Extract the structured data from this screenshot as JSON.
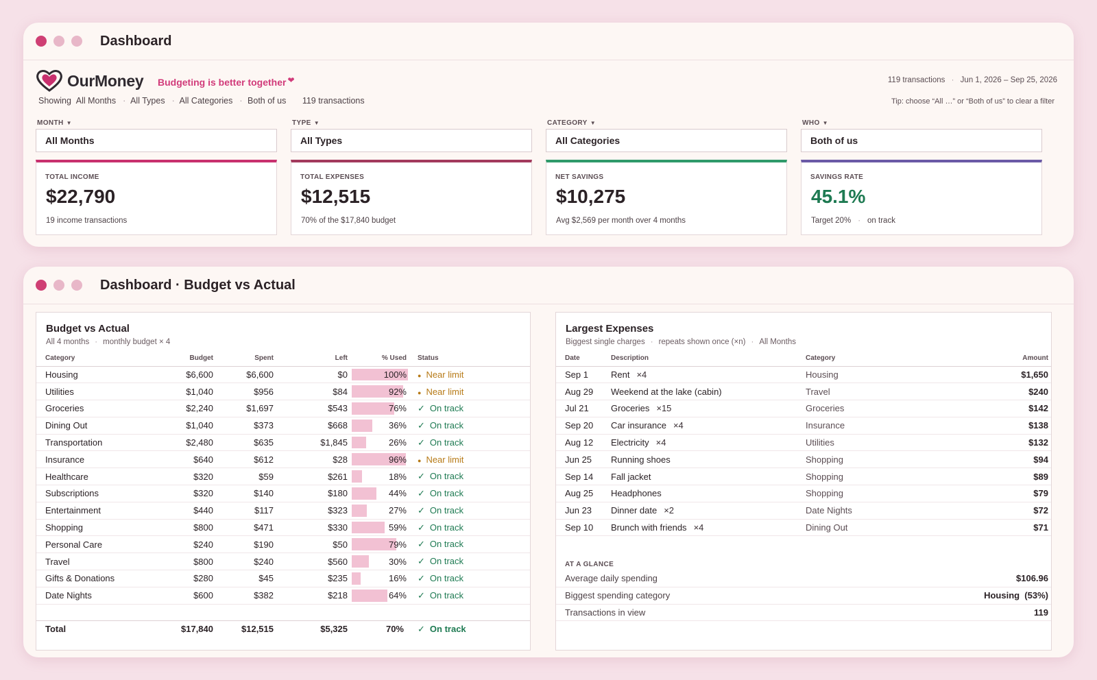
{
  "window1": {
    "title": "Dashboard",
    "brand": {
      "name": "OurMoney",
      "tagline": "Budgeting is better together"
    },
    "header_meta": {
      "transactions": "119 transactions",
      "date_range": "Jun 1, 2026 – Sep 25, 2026"
    },
    "filter_summary": {
      "prefix": "Showing",
      "month": "All Months",
      "type": "All Types",
      "category": "All Categories",
      "who": "Both of us",
      "count": "119 transactions"
    },
    "tip": "Tip: choose “All …” or “Both of us” to clear a filter",
    "filters": [
      {
        "label": "MONTH",
        "value": "All Months"
      },
      {
        "label": "TYPE",
        "value": "All Types"
      },
      {
        "label": "CATEGORY",
        "value": "All Categories"
      },
      {
        "label": "WHO",
        "value": "Both of us"
      }
    ],
    "stats": [
      {
        "label": "TOTAL INCOME",
        "value": "$22,790",
        "sub": "19 income transactions",
        "accent": "#c8306e"
      },
      {
        "label": "TOTAL EXPENSES",
        "value": "$12,515",
        "sub": "70% of the $17,840 budget",
        "accent": "#a33a5d"
      },
      {
        "label": "NET SAVINGS",
        "value": "$10,275",
        "sub": "Avg $2,569 per month over 4 months",
        "accent": "#2f9a6a"
      },
      {
        "label": "SAVINGS RATE",
        "value": "45.1%",
        "sub": "Target 20%",
        "sub2": "on track",
        "accent": "#6a5aa6"
      }
    ]
  },
  "window2": {
    "title": "Dashboard · Budget vs Actual",
    "budget": {
      "title": "Budget vs Actual",
      "sub1": "All 4 months",
      "sub2": "monthly budget × 4",
      "columns": [
        "Category",
        "Budget",
        "Spent",
        "Left",
        "% Used",
        "Status"
      ],
      "rows": [
        {
          "category": "Housing",
          "budget": "$6,600",
          "spent": "$6,600",
          "left": "$0",
          "pct": "100%",
          "pct_value": 100,
          "status": "Near limit",
          "near": true
        },
        {
          "category": "Utilities",
          "budget": "$1,040",
          "spent": "$956",
          "left": "$84",
          "pct": "92%",
          "pct_value": 92,
          "status": "Near limit",
          "near": true
        },
        {
          "category": "Groceries",
          "budget": "$2,240",
          "spent": "$1,697",
          "left": "$543",
          "pct": "76%",
          "pct_value": 76,
          "status": "On track",
          "near": false
        },
        {
          "category": "Dining Out",
          "budget": "$1,040",
          "spent": "$373",
          "left": "$668",
          "pct": "36%",
          "pct_value": 36,
          "status": "On track",
          "near": false
        },
        {
          "category": "Transportation",
          "budget": "$2,480",
          "spent": "$635",
          "left": "$1,845",
          "pct": "26%",
          "pct_value": 26,
          "status": "On track",
          "near": false
        },
        {
          "category": "Insurance",
          "budget": "$640",
          "spent": "$612",
          "left": "$28",
          "pct": "96%",
          "pct_value": 96,
          "status": "Near limit",
          "near": true
        },
        {
          "category": "Healthcare",
          "budget": "$320",
          "spent": "$59",
          "left": "$261",
          "pct": "18%",
          "pct_value": 18,
          "status": "On track",
          "near": false
        },
        {
          "category": "Subscriptions",
          "budget": "$320",
          "spent": "$140",
          "left": "$180",
          "pct": "44%",
          "pct_value": 44,
          "status": "On track",
          "near": false
        },
        {
          "category": "Entertainment",
          "budget": "$440",
          "spent": "$117",
          "left": "$323",
          "pct": "27%",
          "pct_value": 27,
          "status": "On track",
          "near": false
        },
        {
          "category": "Shopping",
          "budget": "$800",
          "spent": "$471",
          "left": "$330",
          "pct": "59%",
          "pct_value": 59,
          "status": "On track",
          "near": false
        },
        {
          "category": "Personal Care",
          "budget": "$240",
          "spent": "$190",
          "left": "$50",
          "pct": "79%",
          "pct_value": 79,
          "status": "On track",
          "near": false
        },
        {
          "category": "Travel",
          "budget": "$800",
          "spent": "$240",
          "left": "$560",
          "pct": "30%",
          "pct_value": 30,
          "status": "On track",
          "near": false
        },
        {
          "category": "Gifts & Donations",
          "budget": "$280",
          "spent": "$45",
          "left": "$235",
          "pct": "16%",
          "pct_value": 16,
          "status": "On track",
          "near": false
        },
        {
          "category": "Date Nights",
          "budget": "$600",
          "spent": "$382",
          "left": "$218",
          "pct": "64%",
          "pct_value": 64,
          "status": "On track",
          "near": false
        }
      ],
      "total": {
        "label": "Total",
        "budget": "$17,840",
        "spent": "$12,515",
        "left": "$5,325",
        "pct": "70%",
        "status": "On track"
      }
    },
    "expenses": {
      "title": "Largest Expenses",
      "sub1": "Biggest single charges",
      "sub2": "repeats shown once (×n)",
      "sub3": "All Months",
      "columns": [
        "Date",
        "Description",
        "Category",
        "Amount"
      ],
      "rows": [
        {
          "date": "Sep 1",
          "desc": "Rent",
          "mult": "×4",
          "category": "Housing",
          "amount": "$1,650"
        },
        {
          "date": "Aug 29",
          "desc": "Weekend at the lake (cabin)",
          "mult": "",
          "category": "Travel",
          "amount": "$240"
        },
        {
          "date": "Jul 21",
          "desc": "Groceries",
          "mult": "×15",
          "category": "Groceries",
          "amount": "$142"
        },
        {
          "date": "Sep 20",
          "desc": "Car insurance",
          "mult": "×4",
          "category": "Insurance",
          "amount": "$138"
        },
        {
          "date": "Aug 12",
          "desc": "Electricity",
          "mult": "×4",
          "category": "Utilities",
          "amount": "$132"
        },
        {
          "date": "Jun 25",
          "desc": "Running shoes",
          "mult": "",
          "category": "Shopping",
          "amount": "$94"
        },
        {
          "date": "Sep 14",
          "desc": "Fall jacket",
          "mult": "",
          "category": "Shopping",
          "amount": "$89"
        },
        {
          "date": "Aug 25",
          "desc": "Headphones",
          "mult": "",
          "category": "Shopping",
          "amount": "$79"
        },
        {
          "date": "Jun 23",
          "desc": "Dinner date",
          "mult": "×2",
          "category": "Date Nights",
          "amount": "$72"
        },
        {
          "date": "Sep 10",
          "desc": "Brunch with friends",
          "mult": "×4",
          "category": "Dining Out",
          "amount": "$71"
        }
      ]
    },
    "glance": {
      "label": "AT A GLANCE",
      "rows": [
        {
          "label": "Average daily spending",
          "value": "$106.96"
        },
        {
          "label": "Biggest spending category",
          "value": "Housing  (53%)"
        },
        {
          "label": "Transactions in view",
          "value": "119"
        }
      ]
    }
  },
  "colors": {
    "accent": "#d13b7a",
    "ok": "#1e7a52",
    "near": "#b77a17",
    "bar": "#f2c1d3"
  }
}
